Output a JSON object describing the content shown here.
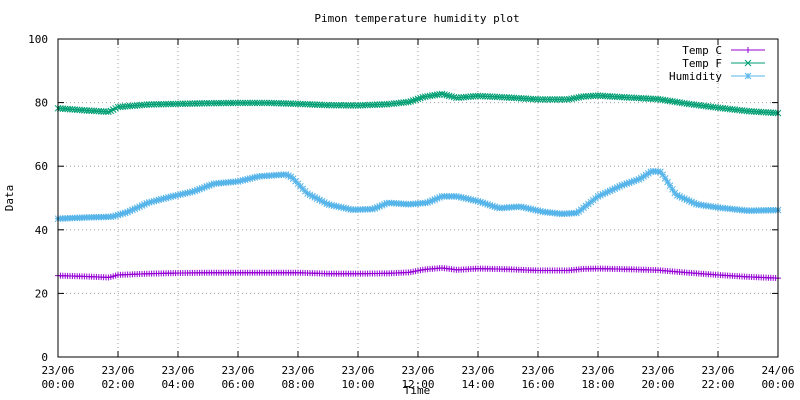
{
  "chart_data": {
    "type": "line",
    "title": "Pimon temperature   humidity plot",
    "xlabel": "Time",
    "ylabel": "Data",
    "ylim": [
      0,
      100
    ],
    "xlim": [
      0,
      24
    ],
    "grid": true,
    "legend_position": "top-right",
    "y_ticks": [
      0,
      20,
      40,
      60,
      80,
      100
    ],
    "x_ticks": [
      {
        "x": 0,
        "line1": "23/06",
        "line2": "00:00"
      },
      {
        "x": 2,
        "line1": "23/06",
        "line2": "02:00"
      },
      {
        "x": 4,
        "line1": "23/06",
        "line2": "04:00"
      },
      {
        "x": 6,
        "line1": "23/06",
        "line2": "06:00"
      },
      {
        "x": 8,
        "line1": "23/06",
        "line2": "08:00"
      },
      {
        "x": 10,
        "line1": "23/06",
        "line2": "10:00"
      },
      {
        "x": 12,
        "line1": "23/06",
        "line2": "12:00"
      },
      {
        "x": 14,
        "line1": "23/06",
        "line2": "14:00"
      },
      {
        "x": 16,
        "line1": "23/06",
        "line2": "16:00"
      },
      {
        "x": 18,
        "line1": "23/06",
        "line2": "18:00"
      },
      {
        "x": 20,
        "line1": "23/06",
        "line2": "20:00"
      },
      {
        "x": 22,
        "line1": "23/06",
        "line2": "22:00"
      },
      {
        "x": 24,
        "line1": "24/06",
        "line2": "00:00"
      }
    ],
    "series": [
      {
        "name": "Temp C",
        "color": "#9400d3",
        "marker": "plus",
        "points": [
          [
            0,
            25.6
          ],
          [
            1,
            25.3
          ],
          [
            1.7,
            25.0
          ],
          [
            2,
            25.8
          ],
          [
            3,
            26.2
          ],
          [
            4,
            26.4
          ],
          [
            5,
            26.5
          ],
          [
            6,
            26.5
          ],
          [
            7,
            26.5
          ],
          [
            8,
            26.5
          ],
          [
            9,
            26.2
          ],
          [
            10,
            26.2
          ],
          [
            11,
            26.3
          ],
          [
            11.7,
            26.6
          ],
          [
            12.2,
            27.5
          ],
          [
            12.8,
            28.0
          ],
          [
            13.3,
            27.4
          ],
          [
            14,
            27.8
          ],
          [
            15,
            27.6
          ],
          [
            16,
            27.2
          ],
          [
            17,
            27.2
          ],
          [
            17.5,
            27.7
          ],
          [
            18,
            27.8
          ],
          [
            19,
            27.6
          ],
          [
            20,
            27.3
          ],
          [
            21,
            26.5
          ],
          [
            22,
            25.8
          ],
          [
            23,
            25.2
          ],
          [
            24,
            24.8
          ]
        ]
      },
      {
        "name": "Temp F",
        "color": "#009e73",
        "marker": "x",
        "points": [
          [
            0,
            78.2
          ],
          [
            1,
            77.5
          ],
          [
            1.7,
            77.1
          ],
          [
            2,
            78.6
          ],
          [
            3,
            79.4
          ],
          [
            4,
            79.6
          ],
          [
            5,
            79.8
          ],
          [
            6,
            79.9
          ],
          [
            7,
            79.9
          ],
          [
            8,
            79.6
          ],
          [
            9,
            79.2
          ],
          [
            10,
            79.1
          ],
          [
            11,
            79.5
          ],
          [
            11.7,
            80.2
          ],
          [
            12.2,
            81.8
          ],
          [
            12.8,
            82.7
          ],
          [
            13.3,
            81.5
          ],
          [
            14,
            82.1
          ],
          [
            15,
            81.6
          ],
          [
            16,
            81.0
          ],
          [
            17,
            81.0
          ],
          [
            17.5,
            81.9
          ],
          [
            18,
            82.2
          ],
          [
            19,
            81.6
          ],
          [
            20,
            81.1
          ],
          [
            21,
            79.6
          ],
          [
            22,
            78.4
          ],
          [
            23,
            77.3
          ],
          [
            24,
            76.7
          ]
        ]
      },
      {
        "name": "Humidity",
        "color": "#56b4e9",
        "marker": "star",
        "points": [
          [
            0,
            43.5
          ],
          [
            1,
            43.9
          ],
          [
            1.8,
            44.1
          ],
          [
            2.3,
            45.5
          ],
          [
            3,
            48.5
          ],
          [
            3.8,
            50.5
          ],
          [
            4.5,
            52.0
          ],
          [
            5.2,
            54.5
          ],
          [
            6,
            55.2
          ],
          [
            6.7,
            56.8
          ],
          [
            7.6,
            57.4
          ],
          [
            7.8,
            56.5
          ],
          [
            8.3,
            51.5
          ],
          [
            9,
            48.0
          ],
          [
            9.8,
            46.3
          ],
          [
            10.5,
            46.5
          ],
          [
            11,
            48.5
          ],
          [
            11.7,
            48.0
          ],
          [
            12.3,
            48.5
          ],
          [
            12.8,
            50.5
          ],
          [
            13.3,
            50.5
          ],
          [
            14,
            49.0
          ],
          [
            14.7,
            46.8
          ],
          [
            15.4,
            47.3
          ],
          [
            16.2,
            45.6
          ],
          [
            16.8,
            45.0
          ],
          [
            17.3,
            45.3
          ],
          [
            18,
            50.5
          ],
          [
            18.8,
            54.0
          ],
          [
            19.4,
            56.0
          ],
          [
            19.8,
            58.5
          ],
          [
            20.1,
            58.2
          ],
          [
            20.6,
            51.0
          ],
          [
            21.3,
            48.0
          ],
          [
            22,
            47.0
          ],
          [
            23,
            46.0
          ],
          [
            24,
            46.2
          ]
        ]
      }
    ]
  }
}
